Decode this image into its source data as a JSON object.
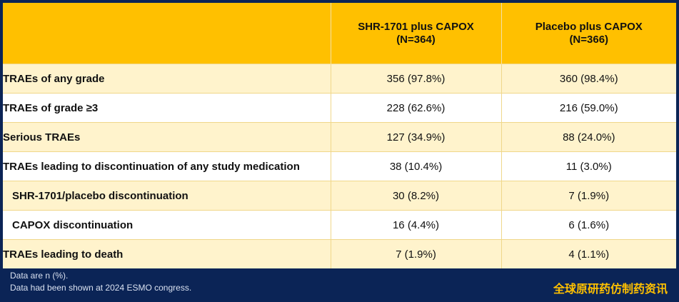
{
  "table": {
    "headers": [
      "",
      "SHR-1701 plus CAPOX\n(N=364)",
      "Placebo plus CAPOX\n(N=366)"
    ],
    "header_lines": [
      [],
      [
        "SHR-1701 plus CAPOX",
        "(N=364)"
      ],
      [
        "Placebo plus CAPOX",
        "(N=366)"
      ]
    ],
    "rows": [
      {
        "label": "TRAEs of any grade",
        "shr": "356 (97.8%)",
        "placebo": "360 (98.4%)",
        "indent": false,
        "shaded": true
      },
      {
        "label": "TRAEs of grade ≥3",
        "shr": "228 (62.6%)",
        "placebo": "216 (59.0%)",
        "indent": false,
        "shaded": false
      },
      {
        "label": "Serious TRAEs",
        "shr": "127 (34.9%)",
        "placebo": "88 (24.0%)",
        "indent": false,
        "shaded": true
      },
      {
        "label": "TRAEs leading to discontinuation of any study medication",
        "shr": "38 (10.4%)",
        "placebo": "11 (3.0%)",
        "indent": false,
        "shaded": false
      },
      {
        "label": "SHR-1701/placebo discontinuation",
        "shr": "30 (8.2%)",
        "placebo": "7 (1.9%)",
        "indent": true,
        "shaded": true
      },
      {
        "label": "CAPOX discontinuation",
        "shr": "16 (4.4%)",
        "placebo": "6 (1.6%)",
        "indent": true,
        "shaded": false
      },
      {
        "label": "TRAEs leading to death",
        "shr": "7 (1.9%)",
        "placebo": "4 (1.1%)",
        "indent": false,
        "shaded": true
      }
    ]
  },
  "footnotes": [
    "Data are n (%).",
    "Data had been shown at 2024 ESMO congress."
  ],
  "watermark": "全球原研药仿制药资讯",
  "colors": {
    "header": "#ffc000",
    "shaded_row": "#fff3cc",
    "background": "#0b2456"
  }
}
